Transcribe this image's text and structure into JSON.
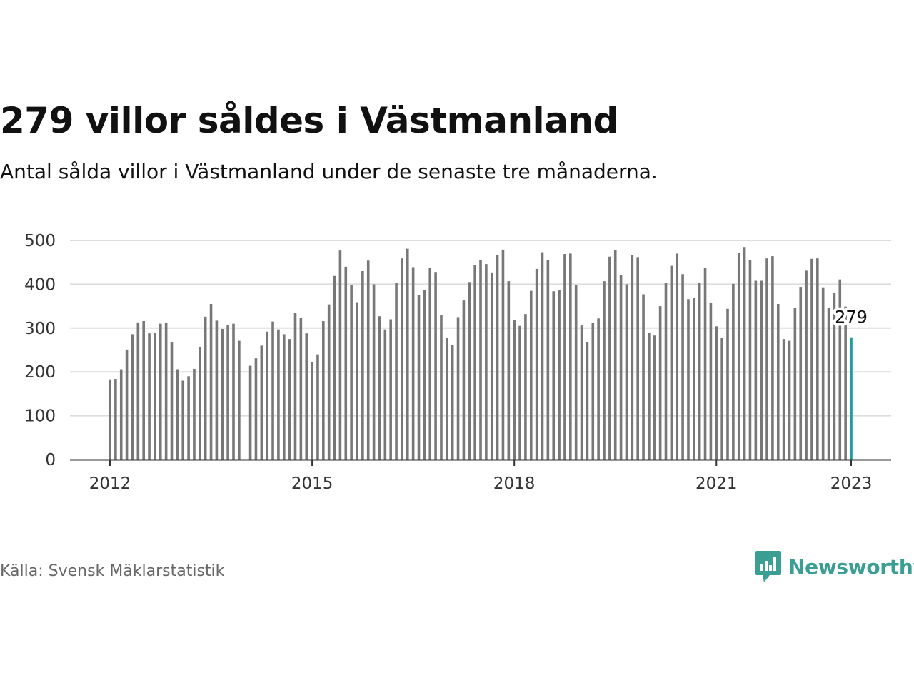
{
  "title": "279 villor såldes i Västmanland",
  "subtitle": "Antal sålda villor i Västmanland under de senaste tre månaderna.",
  "source": "Källa: Svensk Mäklarstatistik",
  "brand": {
    "name": "Newsworthy",
    "logo_icon": "bar-chart-speech-bubble-icon",
    "color": "#3a9e93"
  },
  "chart_data": {
    "type": "bar",
    "x_start": "2012-01",
    "x_end": "2023-01",
    "y_ticks": [
      0,
      100,
      200,
      300,
      400,
      500
    ],
    "x_ticks": [
      {
        "label": "2012",
        "date": "2012-01"
      },
      {
        "label": "2015",
        "date": "2015-01"
      },
      {
        "label": "2018",
        "date": "2018-01"
      },
      {
        "label": "2021",
        "date": "2021-01"
      },
      {
        "label": "2023",
        "date": "2023-01"
      }
    ],
    "ylim": [
      0,
      500
    ],
    "grid": true,
    "bar_color": "#777777",
    "highlight_color": "#1a9f96",
    "highlight_label": "279",
    "values": [
      183,
      184,
      206,
      251,
      286,
      313,
      316,
      288,
      290,
      310,
      312,
      267,
      206,
      180,
      190,
      207,
      257,
      326,
      355,
      317,
      298,
      307,
      310,
      271,
      null,
      214,
      231,
      260,
      292,
      315,
      297,
      286,
      275,
      334,
      324,
      288,
      222,
      240,
      316,
      354,
      419,
      477,
      440,
      398,
      359,
      430,
      454,
      400,
      327,
      297,
      320,
      403,
      459,
      481,
      439,
      375,
      386,
      437,
      428,
      330,
      277,
      262,
      325,
      363,
      405,
      443,
      455,
      446,
      427,
      466,
      479,
      407,
      319,
      305,
      332,
      385,
      435,
      473,
      455,
      384,
      386,
      469,
      470,
      398,
      306,
      268,
      312,
      322,
      407,
      463,
      478,
      421,
      400,
      466,
      462,
      377,
      289,
      283,
      350,
      403,
      442,
      470,
      423,
      366,
      369,
      404,
      438,
      358,
      304,
      278,
      344,
      401,
      471,
      485,
      455,
      408,
      408,
      459,
      464,
      355,
      275,
      271,
      346,
      394,
      431,
      458,
      459,
      393,
      347,
      380,
      411,
      349,
      279
    ]
  }
}
